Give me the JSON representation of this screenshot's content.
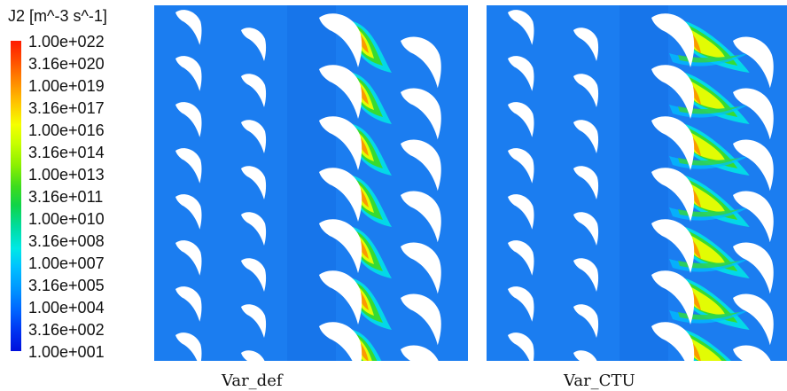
{
  "legend": {
    "title": "J2 [m^-3 s^-1]",
    "ticks": [
      "1.00e+022",
      "3.16e+020",
      "1.00e+019",
      "3.16e+017",
      "1.00e+016",
      "3.16e+014",
      "1.00e+013",
      "3.16e+011",
      "1.00e+010",
      "3.16e+008",
      "1.00e+007",
      "3.16e+005",
      "1.00e+004",
      "3.16e+002",
      "1.00e+001"
    ],
    "colors": [
      "#ff1a00",
      "#ff8800",
      "#f5ff00",
      "#3ddc1d",
      "#00e8e6",
      "#0096ff",
      "#0010dc"
    ]
  },
  "panels": [
    {
      "label": "Var_def",
      "background": "#1b7df0"
    },
    {
      "label": "Var_CTU",
      "background": "#1b7df0"
    }
  ]
}
